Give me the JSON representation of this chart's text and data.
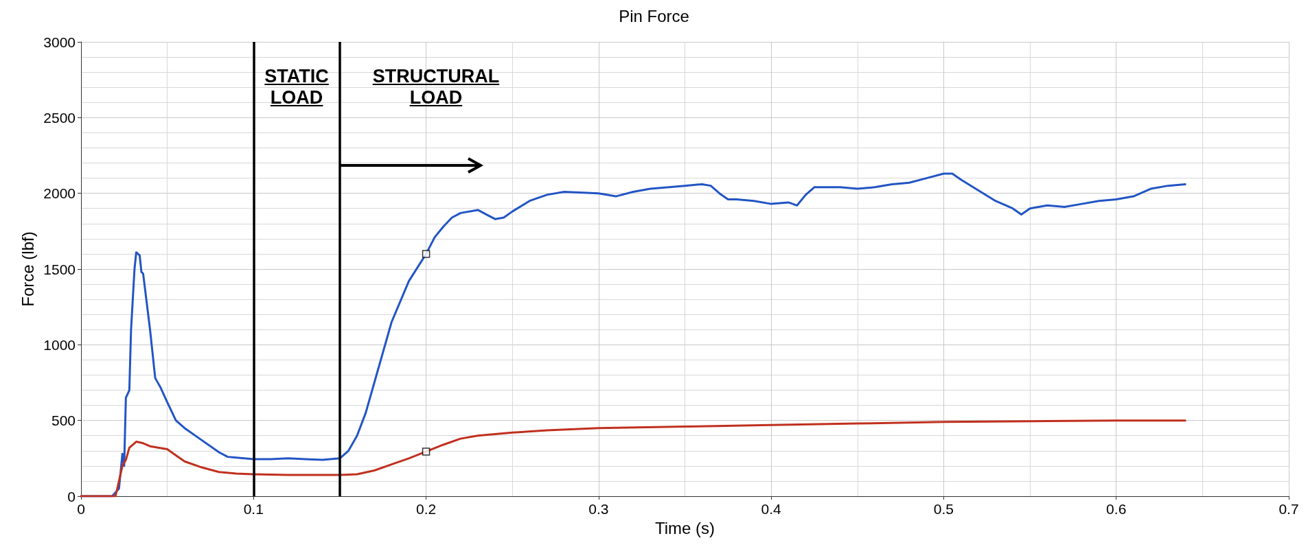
{
  "chart_data": {
    "type": "line",
    "title": "Pin Force",
    "xlabel": "Time (s)",
    "ylabel": "Force (lbf)",
    "xlim": [
      0,
      0.7
    ],
    "xticks": [
      0,
      0.1,
      0.2,
      0.3,
      0.4,
      0.5,
      0.6,
      0.7
    ],
    "ylim": [
      0,
      3000
    ],
    "yticks": [
      0,
      500,
      1000,
      1500,
      2000,
      2500,
      3000
    ],
    "grid": true,
    "marker": "none",
    "line_style": "solid",
    "series": [
      {
        "color": "#2255c4",
        "x": [
          0,
          0.018,
          0.022,
          0.024,
          0.025,
          0.026,
          0.028,
          0.029,
          0.031,
          0.032,
          0.034,
          0.035,
          0.036,
          0.04,
          0.043,
          0.046,
          0.05,
          0.055,
          0.06,
          0.07,
          0.08,
          0.085,
          0.09,
          0.1,
          0.11,
          0.12,
          0.13,
          0.14,
          0.15,
          0.155,
          0.16,
          0.165,
          0.17,
          0.175,
          0.18,
          0.19,
          0.2,
          0.205,
          0.21,
          0.215,
          0.22,
          0.23,
          0.235,
          0.24,
          0.245,
          0.25,
          0.26,
          0.27,
          0.28,
          0.3,
          0.31,
          0.32,
          0.33,
          0.35,
          0.36,
          0.365,
          0.37,
          0.375,
          0.38,
          0.39,
          0.4,
          0.41,
          0.415,
          0.42,
          0.425,
          0.44,
          0.45,
          0.46,
          0.47,
          0.48,
          0.49,
          0.5,
          0.505,
          0.51,
          0.52,
          0.53,
          0.54,
          0.545,
          0.55,
          0.56,
          0.57,
          0.58,
          0.59,
          0.6,
          0.61,
          0.62,
          0.63,
          0.64
        ],
        "values": [
          0,
          0,
          50,
          280,
          200,
          650,
          700,
          1100,
          1500,
          1610,
          1590,
          1480,
          1470,
          1100,
          780,
          720,
          620,
          500,
          450,
          370,
          290,
          260,
          255,
          245,
          245,
          250,
          245,
          240,
          250,
          300,
          400,
          550,
          750,
          950,
          1150,
          1420,
          1600,
          1710,
          1780,
          1840,
          1870,
          1890,
          1860,
          1830,
          1840,
          1880,
          1950,
          1990,
          2010,
          2000,
          1980,
          2010,
          2030,
          2050,
          2060,
          2050,
          2000,
          1960,
          1960,
          1950,
          1930,
          1940,
          1920,
          1990,
          2040,
          2040,
          2030,
          2040,
          2060,
          2070,
          2100,
          2130,
          2130,
          2090,
          2020,
          1950,
          1900,
          1860,
          1900,
          1920,
          1910,
          1930,
          1950,
          1960,
          1980,
          2030,
          2050,
          2060
        ]
      },
      {
        "color": "#c0301e",
        "x": [
          0,
          0.02,
          0.022,
          0.024,
          0.026,
          0.028,
          0.032,
          0.036,
          0.04,
          0.05,
          0.055,
          0.06,
          0.07,
          0.08,
          0.09,
          0.1,
          0.12,
          0.14,
          0.15,
          0.16,
          0.17,
          0.18,
          0.19,
          0.2,
          0.21,
          0.22,
          0.23,
          0.25,
          0.27,
          0.3,
          0.35,
          0.4,
          0.45,
          0.5,
          0.55,
          0.6,
          0.64
        ],
        "values": [
          0,
          0,
          100,
          200,
          240,
          320,
          360,
          350,
          330,
          310,
          270,
          230,
          190,
          160,
          150,
          145,
          140,
          140,
          140,
          145,
          170,
          210,
          250,
          295,
          340,
          380,
          400,
          420,
          435,
          450,
          460,
          470,
          480,
          490,
          495,
          500,
          500
        ]
      },
      {
        "type": "scatter",
        "marker": "square",
        "color": "#000000",
        "x": [
          0.2,
          0.2
        ],
        "values": [
          1600,
          295
        ]
      }
    ],
    "ref_lines": [
      {
        "axis": "x",
        "value": 0.1,
        "color": "#000000"
      },
      {
        "axis": "x",
        "value": 0.15,
        "color": "#000000"
      }
    ],
    "annotations": [
      "STATIC\nLOAD",
      "STRUCTURAL\nLOAD"
    ]
  }
}
